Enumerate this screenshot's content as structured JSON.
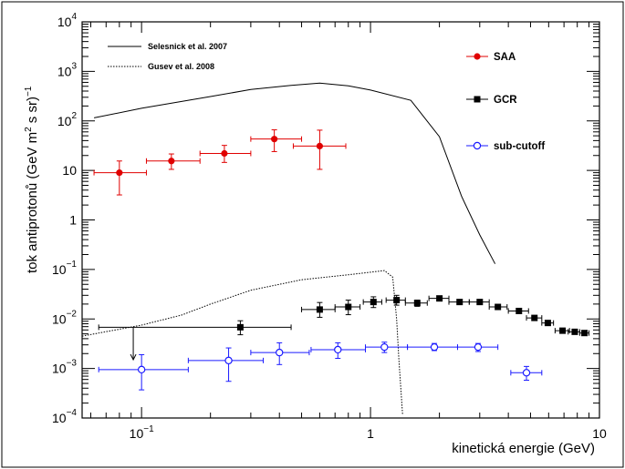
{
  "chart_data": {
    "type": "scatter",
    "xlabel": "kinetická energie  (GeV)",
    "ylabel": "tok antiprotonů (GeV m² s sr)⁻¹",
    "ylabel_parts": {
      "main": "tok antiprotonů (GeV m",
      "sq": "2",
      "mid": " s sr)",
      "exp": "−1"
    },
    "xscale": "log",
    "yscale": "log",
    "xlim": [
      0.055,
      10
    ],
    "ylim": [
      0.0001,
      10000
    ],
    "grid": false,
    "legend_placement": "top-right and top-left",
    "x_ticks": [
      {
        "value": 0.1,
        "label": "10",
        "exp": "−1"
      },
      {
        "value": 1,
        "label": "1",
        "exp": ""
      },
      {
        "value": 10,
        "label": "10",
        "exp": ""
      }
    ],
    "y_ticks": [
      {
        "value": 0.0001,
        "label": "10",
        "exp": "−4"
      },
      {
        "value": 0.001,
        "label": "10",
        "exp": "−3"
      },
      {
        "value": 0.01,
        "label": "10",
        "exp": "−2"
      },
      {
        "value": 0.1,
        "label": "10",
        "exp": "−1"
      },
      {
        "value": 1,
        "label": "1",
        "exp": ""
      },
      {
        "value": 10,
        "label": "10",
        "exp": ""
      },
      {
        "value": 100,
        "label": "10",
        "exp": "2"
      },
      {
        "value": 1000,
        "label": "10",
        "exp": "3"
      },
      {
        "value": 10000,
        "label": "10",
        "exp": "4"
      }
    ],
    "series": [
      {
        "name": "SAA",
        "color": "#e00000",
        "marker": "filled-circle",
        "points": [
          {
            "x": 0.08,
            "xlo": 0.062,
            "xhi": 0.105,
            "y": 9.0,
            "ylo": 3.2,
            "yhi": 15.5
          },
          {
            "x": 0.135,
            "xlo": 0.105,
            "xhi": 0.18,
            "y": 15.5,
            "ylo": 10.5,
            "yhi": 21.5
          },
          {
            "x": 0.23,
            "xlo": 0.18,
            "xhi": 0.3,
            "y": 22,
            "ylo": 14.5,
            "yhi": 32
          },
          {
            "x": 0.38,
            "xlo": 0.3,
            "xhi": 0.5,
            "y": 43,
            "ylo": 24,
            "yhi": 66
          },
          {
            "x": 0.6,
            "xlo": 0.46,
            "xhi": 0.78,
            "y": 31,
            "ylo": 10.5,
            "yhi": 65
          }
        ]
      },
      {
        "name": "GCR",
        "color": "#000000",
        "marker": "filled-square",
        "points": [
          {
            "x": 0.27,
            "xlo": 0.065,
            "xhi": 0.45,
            "y": 0.0068,
            "ylo": 0.0048,
            "yhi": 0.0092
          },
          {
            "x": 0.6,
            "xlo": 0.5,
            "xhi": 0.7,
            "y": 0.0155,
            "ylo": 0.0108,
            "yhi": 0.0215
          },
          {
            "x": 0.8,
            "xlo": 0.7,
            "xhi": 0.9,
            "y": 0.0175,
            "ylo": 0.0122,
            "yhi": 0.024
          },
          {
            "x": 1.03,
            "xlo": 0.93,
            "xhi": 1.12,
            "y": 0.022,
            "ylo": 0.017,
            "yhi": 0.028
          },
          {
            "x": 1.3,
            "xlo": 1.17,
            "xhi": 1.42,
            "y": 0.024,
            "ylo": 0.019,
            "yhi": 0.03
          },
          {
            "x": 1.6,
            "xlo": 1.42,
            "xhi": 1.77,
            "y": 0.021,
            "ylo": 0.018,
            "yhi": 0.024
          },
          {
            "x": 2.0,
            "xlo": 1.8,
            "xhi": 2.2,
            "y": 0.026,
            "ylo": 0.024,
            "yhi": 0.028
          },
          {
            "x": 2.45,
            "xlo": 2.2,
            "xhi": 2.7,
            "y": 0.022,
            "ylo": 0.02,
            "yhi": 0.024
          },
          {
            "x": 3.0,
            "xlo": 2.7,
            "xhi": 3.3,
            "y": 0.022,
            "ylo": 0.02,
            "yhi": 0.024
          },
          {
            "x": 3.6,
            "xlo": 3.3,
            "xhi": 3.95,
            "y": 0.0175,
            "ylo": 0.016,
            "yhi": 0.019
          },
          {
            "x": 4.45,
            "xlo": 4.0,
            "xhi": 4.9,
            "y": 0.0145,
            "ylo": 0.013,
            "yhi": 0.016
          },
          {
            "x": 5.2,
            "xlo": 4.8,
            "xhi": 5.6,
            "y": 0.0105,
            "ylo": 0.0095,
            "yhi": 0.0115
          },
          {
            "x": 5.95,
            "xlo": 5.6,
            "xhi": 6.3,
            "y": 0.0083,
            "ylo": 0.0075,
            "yhi": 0.0091
          },
          {
            "x": 6.9,
            "xlo": 6.4,
            "xhi": 7.4,
            "y": 0.0058,
            "ylo": 0.0053,
            "yhi": 0.0063
          },
          {
            "x": 7.8,
            "xlo": 7.3,
            "xhi": 8.2,
            "y": 0.0055,
            "ylo": 0.005,
            "yhi": 0.006
          },
          {
            "x": 8.6,
            "xlo": 8.2,
            "xhi": 9.0,
            "y": 0.0052,
            "ylo": 0.0047,
            "yhi": 0.0057
          }
        ],
        "upper_limit": {
          "x": 0.092,
          "y_from": 0.0068,
          "y_to": 0.0015
        }
      },
      {
        "name": "sub-cutoff",
        "color": "#1a1aff",
        "marker": "open-circle",
        "points": [
          {
            "x": 0.1,
            "xlo": 0.065,
            "xhi": 0.16,
            "y": 0.00095,
            "ylo": 0.00037,
            "yhi": 0.0019
          },
          {
            "x": 0.24,
            "xlo": 0.16,
            "xhi": 0.34,
            "y": 0.00145,
            "ylo": 0.00055,
            "yhi": 0.0026
          },
          {
            "x": 0.4,
            "xlo": 0.3,
            "xhi": 0.54,
            "y": 0.0021,
            "ylo": 0.0012,
            "yhi": 0.0033
          },
          {
            "x": 0.72,
            "xlo": 0.55,
            "xhi": 0.95,
            "y": 0.0024,
            "ylo": 0.0016,
            "yhi": 0.0033
          },
          {
            "x": 1.15,
            "xlo": 0.95,
            "xhi": 1.45,
            "y": 0.0027,
            "ylo": 0.0021,
            "yhi": 0.0034
          },
          {
            "x": 1.9,
            "xlo": 1.45,
            "xhi": 2.4,
            "y": 0.0027,
            "ylo": 0.0023,
            "yhi": 0.0032
          },
          {
            "x": 2.95,
            "xlo": 2.4,
            "xhi": 3.6,
            "y": 0.0027,
            "ylo": 0.0022,
            "yhi": 0.0032
          },
          {
            "x": 4.8,
            "xlo": 4.1,
            "xhi": 5.6,
            "y": 0.00082,
            "ylo": 0.00058,
            "yhi": 0.0011
          }
        ]
      }
    ],
    "curves": [
      {
        "name": "Selesnick et al. 2007",
        "style": "solid",
        "points": [
          [
            0.062,
            115
          ],
          [
            0.1,
            180
          ],
          [
            0.2,
            310
          ],
          [
            0.3,
            430
          ],
          [
            0.45,
            520
          ],
          [
            0.6,
            580
          ],
          [
            0.8,
            510
          ],
          [
            1.0,
            420
          ],
          [
            1.5,
            260
          ],
          [
            2.0,
            48
          ],
          [
            2.5,
            3
          ],
          [
            3.0,
            0.5
          ],
          [
            3.5,
            0.13
          ]
        ]
      },
      {
        "name": "Gusev et al. 2008",
        "style": "dotted",
        "points": [
          [
            0.055,
            0.0045
          ],
          [
            0.1,
            0.0075
          ],
          [
            0.15,
            0.012
          ],
          [
            0.2,
            0.02
          ],
          [
            0.3,
            0.038
          ],
          [
            0.5,
            0.062
          ],
          [
            0.8,
            0.078
          ],
          [
            1.0,
            0.088
          ],
          [
            1.15,
            0.095
          ],
          [
            1.25,
            0.07
          ],
          [
            1.3,
            0.01
          ],
          [
            1.33,
            0.0015
          ],
          [
            1.38,
            0.00012
          ]
        ]
      }
    ]
  }
}
